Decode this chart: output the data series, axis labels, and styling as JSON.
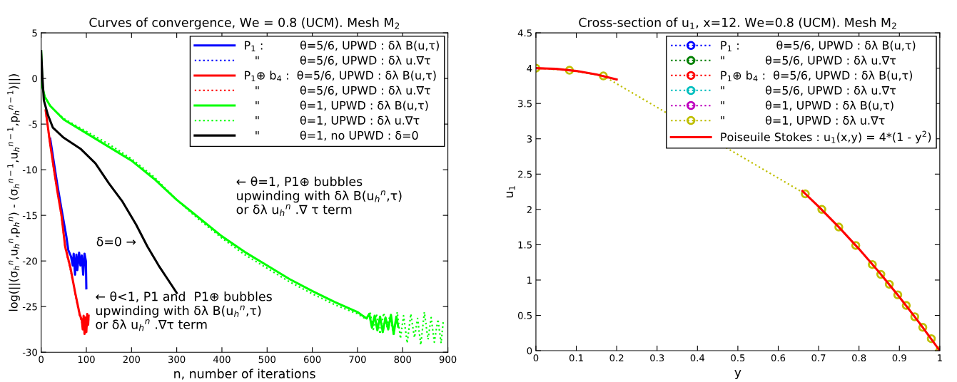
{
  "chart_data": [
    {
      "type": "line",
      "title": "Curves of convergence, We = 0.8 (UCM). Mesh M$_{2}$",
      "xlabel": "n, number of iterations",
      "ylabel": "log(||(σ$_{h}$$^{n}$,u$_{h}$$^{n}$,p$_{h}$$^{n}$) - (σ$_{h}$$^{n−1}$,u$_{h}$$^{n−1}$,p$_{h}$$^{n−1}$)||)",
      "xlim": [
        0,
        900
      ],
      "ylim": [
        -30,
        5
      ],
      "xticks": [
        0,
        100,
        200,
        300,
        400,
        500,
        600,
        700,
        800,
        900
      ],
      "yticks": [
        -30,
        -25,
        -20,
        -15,
        -10,
        -5,
        0,
        5
      ],
      "legend": "top right",
      "marker": "none",
      "annotations": [
        "← θ=1, P1⊕ bubbles\nupwinding with δλ B(u$_{h}$$^{n}$,τ)\nor δλ u$_{h}$$^{n}$ .∇ τ term",
        "δ=0 →",
        "← θ<1, P1 and  P1⊕ bubbles\nupwinding with δλ B(u$_{h}$$^{n}$,τ)\nor δλ u$_{h}$$^{n}$ .∇τ term"
      ],
      "series": [
        {
          "name": "P$_{1}$ :          θ=5/6, UPWD : δλ B(u,τ)",
          "color": "#0000ff",
          "line_style": "solid",
          "x": [
            20,
            30,
            36,
            45,
            56,
            60,
            66,
            70,
            72,
            75,
            78,
            80,
            84,
            87,
            90,
            93,
            96,
            99,
            100
          ],
          "values": [
            -6.6,
            -9.8,
            -11.7,
            -14.3,
            -17.4,
            -18.8,
            -19.5,
            -20.5,
            -19.2,
            -21.5,
            -19.3,
            -21,
            -19.1,
            -20.5,
            -19.4,
            -21.5,
            -19.2,
            -20,
            -23
          ]
        },
        {
          "name": "   \"           θ=5/6, UPWD : δλ u.∇τ",
          "color": "#0000ff",
          "line_style": "dotted"
        },
        {
          "name": "P$_{1}$⊕ b$_{4}$ :  θ=5/6, UPWD : δλ B(u,τ)",
          "color": "#ff0000",
          "line_style": "solid",
          "x": [
            10,
            20,
            30,
            36,
            45,
            53,
            65,
            75,
            85,
            90,
            92,
            94,
            96,
            98,
            100,
            102,
            104,
            105
          ],
          "values": [
            -3.5,
            -7.2,
            -10.5,
            -12.4,
            -15,
            -18.4,
            -20.8,
            -23.4,
            -25.8,
            -26.5,
            -27.5,
            -26,
            -28,
            -26.2,
            -27.8,
            -25.8,
            -27,
            -26
          ]
        },
        {
          "name": "   \"           θ=5/6, UPWD : δλ u.∇τ",
          "color": "#ff0000",
          "line_style": "dotted",
          "x": [
            10,
            20,
            30,
            36,
            45,
            53,
            65,
            75,
            85,
            90,
            93,
            95,
            97,
            99,
            101,
            103,
            105
          ],
          "values": [
            -3.6,
            -7.3,
            -10.6,
            -12.5,
            -15.1,
            -18.5,
            -21,
            -23.5,
            -26,
            -26.7,
            -27.2,
            -26.1,
            -27.7,
            -26.4,
            -27.3,
            -25.9,
            -26.5
          ]
        },
        {
          "name": "   \"           θ=1, UPWD : δλ B(u,τ)",
          "color": "#00ff00",
          "line_style": "solid",
          "x": [
            0,
            3,
            8,
            20,
            50,
            100,
            150,
            200,
            250,
            300,
            350,
            400,
            450,
            500,
            550,
            600,
            650,
            700,
            720,
            726,
            732,
            738,
            744,
            750,
            756,
            762,
            768,
            774,
            780,
            786,
            790
          ],
          "values": [
            3,
            -1,
            -2,
            -3,
            -4.5,
            -6,
            -7.5,
            -9,
            -11,
            -13.3,
            -15.3,
            -17.3,
            -19,
            -20.5,
            -22,
            -23.3,
            -24.5,
            -25.6,
            -26.3,
            -25.8,
            -27.3,
            -26,
            -27.6,
            -26.1,
            -27.8,
            -26.2,
            -27.5,
            -25.9,
            -28,
            -26.1,
            -27.2
          ]
        },
        {
          "name": "   \"           θ=1, UPWD : δλ u.∇τ",
          "color": "#00ff00",
          "line_style": "dotted",
          "x": [
            0,
            3,
            8,
            20,
            50,
            100,
            150,
            200,
            250,
            300,
            350,
            400,
            450,
            500,
            550,
            600,
            650,
            700,
            720,
            728,
            735,
            742,
            750,
            758,
            765,
            772,
            780,
            788,
            795,
            802,
            810,
            818,
            826,
            833,
            840,
            848,
            856,
            863,
            870,
            878,
            885,
            890
          ],
          "values": [
            3,
            -1,
            -2,
            -3,
            -4.4,
            -5.8,
            -7.2,
            -8.8,
            -10.8,
            -13.3,
            -15.5,
            -17.5,
            -19.3,
            -20.8,
            -22.3,
            -23.6,
            -24.8,
            -25.8,
            -26.4,
            -25.6,
            -27.5,
            -25.8,
            -28,
            -25.7,
            -27.2,
            -26,
            -28.2,
            -25.6,
            -28.5,
            -26,
            -29,
            -25.8,
            -28.4,
            -26.3,
            -29.2,
            -25.6,
            -28.6,
            -26.2,
            -28.9,
            -26.4,
            -29,
            -26.5
          ]
        },
        {
          "name": "   \"           θ=1, no UPWD : δ=0",
          "color": "#000000",
          "line_style": "solid",
          "x": [
            0,
            3,
            6,
            15,
            26,
            50,
            87,
            120,
            150,
            180,
            210,
            235,
            260,
            280,
            300
          ],
          "values": [
            3,
            0,
            -2.4,
            -4,
            -5.4,
            -6.5,
            -7.7,
            -9.3,
            -11.5,
            -13.5,
            -16,
            -18.4,
            -20.5,
            -22,
            -23.5
          ]
        }
      ]
    },
    {
      "type": "line",
      "title": "Cross-section of u$_{1}$, x=12. We=0.8 (UCM). Mesh M$_{2}$",
      "xlabel": "y",
      "ylabel": "u$_{1}$",
      "xlim": [
        0,
        1
      ],
      "ylim": [
        0,
        4.5
      ],
      "xticks": [
        0,
        0.1,
        0.2,
        0.3,
        0.4,
        0.5,
        0.6,
        0.7,
        0.8,
        0.9,
        1
      ],
      "yticks": [
        0,
        0.5,
        1,
        1.5,
        2,
        2.5,
        3,
        3.5,
        4,
        4.5
      ],
      "legend": "top right",
      "series": [
        {
          "name": "P$_{1}$ :          θ=5/6, UPWD : δλ B(u,τ)",
          "color": "#0000ff",
          "line_style": "dotted",
          "marker": "circle"
        },
        {
          "name": "\"           θ=5/6, UPWD : δλ u.∇τ",
          "color": "#008000",
          "line_style": "dotted",
          "marker": "circle"
        },
        {
          "name": "P$_{1}$⊕ b$_{4}$ :  θ=5/6, UPWD : δλ B(u,τ)",
          "color": "#ff0000",
          "line_style": "dotted",
          "marker": "circle"
        },
        {
          "name": "\"           θ=5/6, UPWD : δλ u.∇τ",
          "color": "#00bfbf",
          "line_style": "dotted",
          "marker": "circle"
        },
        {
          "name": "\"           θ=1, UPWD : δλ B(u,τ)",
          "color": "#bf00bf",
          "line_style": "dotted",
          "marker": "circle"
        },
        {
          "name": "\"           θ=1, UPWD : δλ u.∇τ",
          "color": "#bfbf00",
          "line_style": "dotted",
          "marker": "circle",
          "x": [
            0,
            0.083,
            0.167,
            0.667,
            0.708,
            0.75,
            0.792,
            0.833,
            0.854,
            0.875,
            0.896,
            0.917,
            0.938,
            0.958,
            0.979,
            1
          ],
          "values": [
            4,
            3.97,
            3.89,
            2.22,
            2.0,
            1.75,
            1.49,
            1.22,
            1.08,
            0.94,
            0.79,
            0.64,
            0.48,
            0.33,
            0.17,
            0
          ]
        },
        {
          "name": "Poiseuile Stokes : u$_{1}$(x,y) = 4*(1 - y$^{2}$)",
          "color": "#ff0000",
          "line_style": "solid",
          "marker": "none",
          "x": [
            0,
            0.05,
            0.1,
            0.15,
            0.2,
            0.4,
            0.66,
            0.7,
            0.75,
            0.8,
            0.85,
            0.9,
            0.95,
            1
          ],
          "values": [
            4,
            3.99,
            3.96,
            3.91,
            3.84,
            null,
            2.26,
            2.04,
            1.75,
            1.44,
            1.11,
            0.76,
            0.39,
            0
          ]
        }
      ]
    }
  ]
}
